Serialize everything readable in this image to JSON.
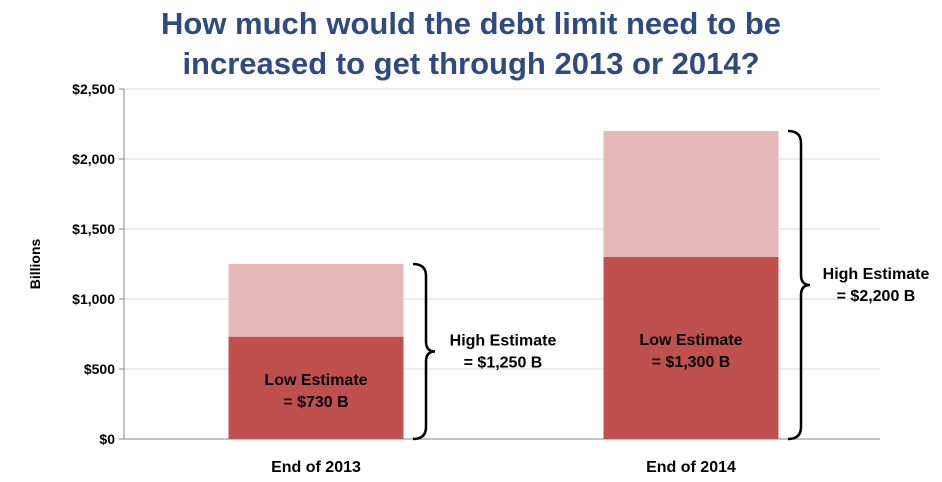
{
  "title_lines": [
    "How much would the debt limit need to be",
    "increased to get through 2013 or 2014?"
  ],
  "colors": {
    "title": "#2e4a7f",
    "low": "#c0504d",
    "high": "#e6b9b8",
    "grid": "#d9d9d9",
    "text": "#000000"
  },
  "chart_data": {
    "type": "bar",
    "stacked": true,
    "title": "How much would the debt limit need to be increased to get through 2013 or 2014?",
    "ylabel": "Billions",
    "xlabel": "",
    "ylim": [
      0,
      2500
    ],
    "yticks": [
      0,
      500,
      1000,
      1500,
      2000,
      2500
    ],
    "ytick_labels": [
      "$0",
      "$500",
      "$1,000",
      "$1,500",
      "$2,000",
      "$2,500"
    ],
    "grid": true,
    "categories": [
      "End of 2013",
      "End of 2014"
    ],
    "series": [
      {
        "name": "Low Estimate",
        "values": [
          730,
          1300
        ]
      },
      {
        "name": "High Estimate (additional)",
        "values": [
          520,
          900
        ]
      }
    ],
    "totals": [
      1250,
      2200
    ],
    "low_labels": [
      [
        "Low Estimate",
        "= $730 B"
      ],
      [
        "Low Estimate",
        "= $1,300 B"
      ]
    ],
    "high_labels": [
      [
        "High Estimate",
        "= $1,250 B"
      ],
      [
        "High Estimate",
        "= $2,200 B"
      ]
    ]
  }
}
